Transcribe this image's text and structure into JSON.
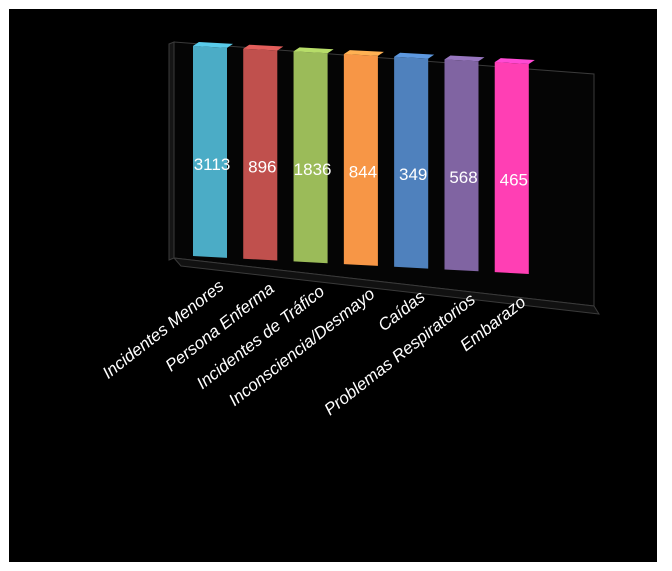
{
  "chart_data": {
    "type": "bar",
    "categories": [
      "Incidentes Menores",
      "Persona Enferma",
      "Incidentes de Tráfico",
      "Inconsciencia/Desmayo",
      "Caídas",
      "Problemas Respiratorios",
      "Embarazo"
    ],
    "values": [
      3113,
      896,
      1836,
      844,
      349,
      568,
      465
    ],
    "data_labels": [
      "3113",
      "896",
      "1836",
      "844",
      "349",
      "568",
      "465"
    ],
    "colors": [
      "#4bacc6",
      "#c0504d",
      "#9bbb59",
      "#f79646",
      "#4f81bd",
      "#8064a2",
      "#ff3fb4"
    ],
    "title": "",
    "xlabel": "",
    "ylabel": "",
    "grid": false,
    "legend": "none",
    "style": "3d-column"
  }
}
